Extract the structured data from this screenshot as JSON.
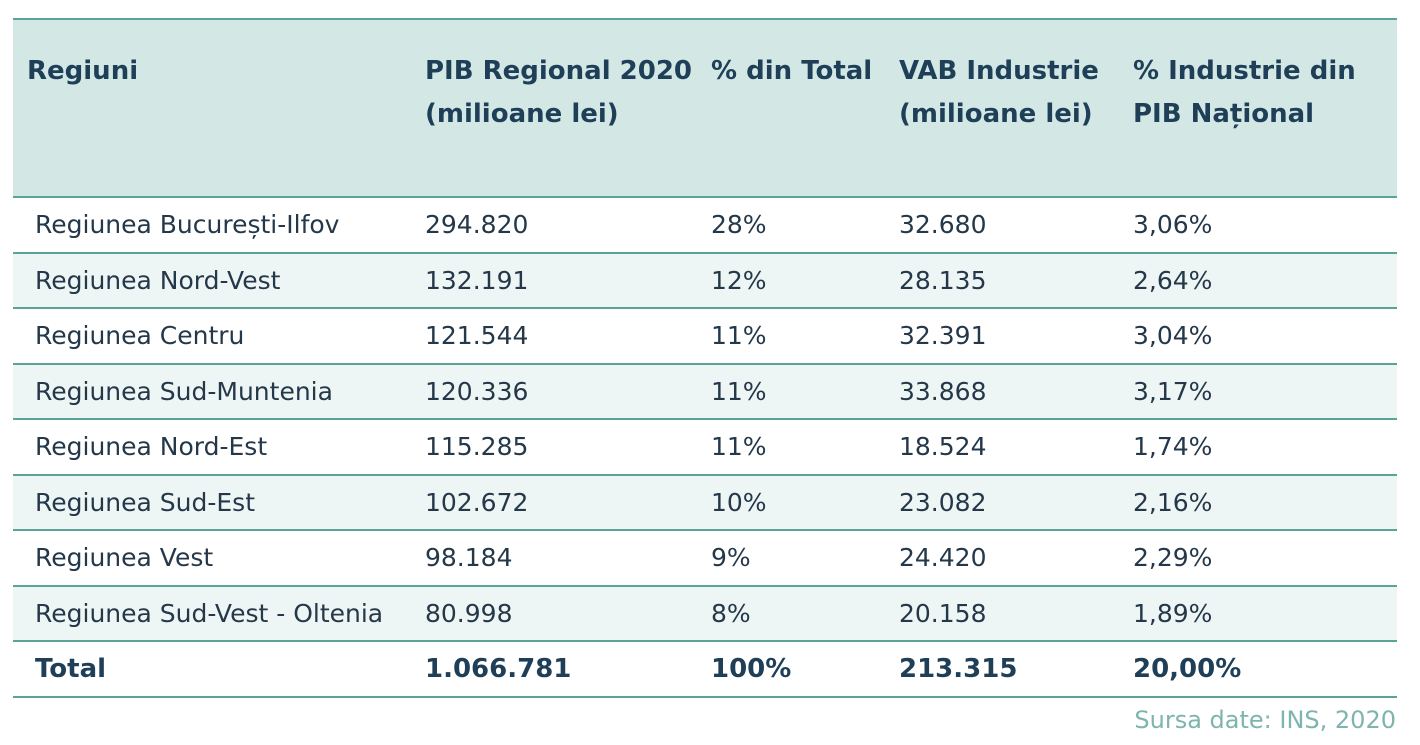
{
  "table": {
    "headers": [
      "Regiuni",
      "PIB Regional 2020 (milioane lei)",
      "% din Total",
      "VAB Industrie (milioane lei)",
      "% Industrie din PIB Național"
    ],
    "rows": [
      [
        "Regiunea București-Ilfov",
        "294.820",
        "28%",
        "32.680",
        "3,06%"
      ],
      [
        "Regiunea Nord-Vest",
        "132.191",
        "12%",
        "28.135",
        "2,64%"
      ],
      [
        "Regiunea Centru",
        "121.544",
        "11%",
        "32.391",
        "3,04%"
      ],
      [
        "Regiunea Sud-Muntenia",
        "120.336",
        "11%",
        "33.868",
        "3,17%"
      ],
      [
        "Regiunea Nord-Est",
        "115.285",
        "11%",
        "18.524",
        "1,74%"
      ],
      [
        "Regiunea Sud-Est",
        "102.672",
        "10%",
        "23.082",
        "2,16%"
      ],
      [
        "Regiunea Vest",
        "98.184",
        "9%",
        "24.420",
        "2,29%"
      ],
      [
        "Regiunea Sud-Vest - Oltenia",
        "80.998",
        "8%",
        "20.158",
        "1,89%"
      ]
    ],
    "total": [
      "Total",
      "1.066.781",
      "100%",
      "213.315",
      "20,00%"
    ]
  },
  "source": "Sursa date: INS, 2020",
  "colors": {
    "header_bg": "#d3e8e5",
    "odd_row_bg": "#eef6f5",
    "border": "#5aa39b",
    "header_text": "#1e3f57",
    "source_text": "#7db5ae"
  }
}
